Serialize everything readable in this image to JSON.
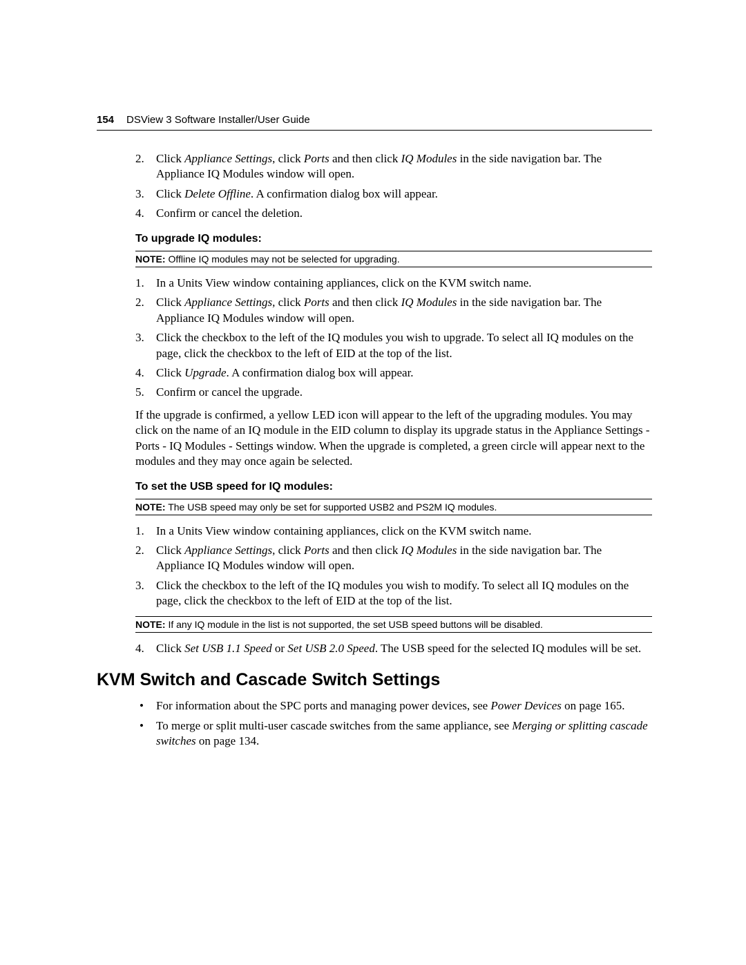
{
  "header": {
    "page_number": "154",
    "doc_title": "DSView 3 Software Installer/User Guide"
  },
  "section1": {
    "items": {
      "2": {
        "pre": "Click ",
        "i1": "Appliance Settings",
        "mid1": ", click ",
        "i2": "Ports",
        "mid2": " and then click ",
        "i3": "IQ Modules",
        "post": " in the side navigation bar. The Appliance IQ Modules window will open."
      },
      "3": {
        "pre": "Click ",
        "i1": "Delete Offline",
        "post": ". A confirmation dialog box will appear."
      },
      "4": {
        "text": "Confirm or cancel the deletion."
      }
    }
  },
  "upgrade": {
    "heading": "To upgrade IQ modules:",
    "note_label": "NOTE:",
    "note_text": " Offline IQ modules may not be selected for upgrading.",
    "items": {
      "1": {
        "text": "In a Units View window containing appliances, click on the KVM switch name."
      },
      "2": {
        "pre": "Click ",
        "i1": "Appliance Settings",
        "mid1": ", click ",
        "i2": "Ports",
        "mid2": " and then click ",
        "i3": "IQ Modules",
        "post": " in the side navigation bar. The Appliance IQ Modules window will open."
      },
      "3": {
        "text": "Click the checkbox to the left of the IQ modules you wish to upgrade. To select all IQ modules on the page, click the checkbox to the left of EID at the top of the list."
      },
      "4": {
        "pre": "Click ",
        "i1": "Upgrade",
        "post": ". A confirmation dialog box will appear."
      },
      "5": {
        "text": "Confirm or cancel the upgrade."
      }
    },
    "footer_para": "If the upgrade is confirmed, a yellow LED icon will appear to the left of the upgrading modules. You may click on the name of an IQ module in the EID column to display its upgrade status in the Appliance Settings - Ports - IQ Modules - Settings window. When the upgrade is completed, a green circle will appear next to the modules and they may once again be selected."
  },
  "usb": {
    "heading": "To set the USB speed for IQ modules:",
    "note1_label": "NOTE:",
    "note1_text": " The USB speed may only be set for supported USB2 and PS2M IQ modules.",
    "items": {
      "1": {
        "text": "In a Units View window containing appliances, click on the KVM switch name."
      },
      "2": {
        "pre": "Click ",
        "i1": "Appliance Settings",
        "mid1": ", click ",
        "i2": "Ports",
        "mid2": " and then click ",
        "i3": "IQ Modules",
        "post": " in the side navigation bar. The Appliance IQ Modules window will open."
      },
      "3": {
        "text": "Click the checkbox to the left of the IQ modules you wish to modify. To select all IQ modules on the page, click the checkbox to the left of EID at the top of the list."
      }
    },
    "note2_label": "NOTE:",
    "note2_text": " If any IQ module in the list is not supported, the set USB speed buttons will be disabled.",
    "item4": {
      "pre": "Click ",
      "i1": "Set USB 1.1 Speed",
      "mid": " or ",
      "i2": "Set USB 2.0 Speed",
      "post": ". The USB speed for the selected IQ modules will be set."
    }
  },
  "kvm": {
    "heading": "KVM Switch and Cascade Switch Settings",
    "bullets": {
      "0": {
        "pre": "For information about the SPC ports and managing power devices, see ",
        "i1": "Power Devices",
        "post": " on page 165."
      },
      "1": {
        "pre": "To merge or split multi-user cascade switches from the same appliance, see ",
        "i1": "Merging or splitting cascade switches",
        "post": " on page 134."
      }
    }
  },
  "nums": {
    "n1": "1.",
    "n2": "2.",
    "n3": "3.",
    "n4": "4.",
    "n5": "5."
  },
  "bullet": "•"
}
